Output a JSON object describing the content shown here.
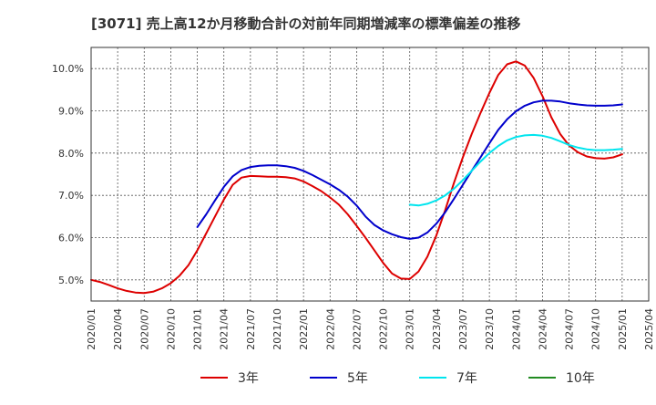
{
  "chart_data": {
    "type": "line",
    "title": "[3071]  売上高12か月移動合計の対前年同期増減率の標準偏差の推移",
    "xlabel": "",
    "ylabel": "",
    "x_ticks": [
      "2020/01",
      "2020/04",
      "2020/07",
      "2020/10",
      "2021/01",
      "2021/04",
      "2021/07",
      "2021/10",
      "2022/01",
      "2022/04",
      "2022/07",
      "2022/10",
      "2023/01",
      "2023/04",
      "2023/07",
      "2023/10",
      "2024/01",
      "2024/04",
      "2024/07",
      "2024/10",
      "2025/01",
      "2025/04"
    ],
    "y_ticks": [
      5.0,
      6.0,
      7.0,
      8.0,
      9.0,
      10.0
    ],
    "y_tick_labels": [
      "5.0%",
      "6.0%",
      "7.0%",
      "8.0%",
      "9.0%",
      "10.0%"
    ],
    "ylim": [
      4.5,
      10.5
    ],
    "xlim": [
      "2020/01",
      "2025/04"
    ],
    "grid": true,
    "legend_position": "bottom",
    "series": [
      {
        "name": "3年",
        "color": "#dd0000",
        "points": [
          [
            "2020/01",
            5.0
          ],
          [
            "2020/02",
            4.95
          ],
          [
            "2020/03",
            4.88
          ],
          [
            "2020/04",
            4.8
          ],
          [
            "2020/05",
            4.74
          ],
          [
            "2020/06",
            4.7
          ],
          [
            "2020/07",
            4.69
          ],
          [
            "2020/08",
            4.72
          ],
          [
            "2020/09",
            4.8
          ],
          [
            "2020/10",
            4.92
          ],
          [
            "2020/11",
            5.1
          ],
          [
            "2020/12",
            5.35
          ],
          [
            "2021/01",
            5.7
          ],
          [
            "2021/02",
            6.1
          ],
          [
            "2021/03",
            6.5
          ],
          [
            "2021/04",
            6.9
          ],
          [
            "2021/05",
            7.25
          ],
          [
            "2021/06",
            7.42
          ],
          [
            "2021/07",
            7.46
          ],
          [
            "2021/08",
            7.45
          ],
          [
            "2021/09",
            7.44
          ],
          [
            "2021/10",
            7.44
          ],
          [
            "2021/11",
            7.43
          ],
          [
            "2021/12",
            7.4
          ],
          [
            "2022/01",
            7.33
          ],
          [
            "2022/02",
            7.22
          ],
          [
            "2022/03",
            7.1
          ],
          [
            "2022/04",
            6.95
          ],
          [
            "2022/05",
            6.78
          ],
          [
            "2022/06",
            6.55
          ],
          [
            "2022/07",
            6.28
          ],
          [
            "2022/08",
            6.0
          ],
          [
            "2022/09",
            5.7
          ],
          [
            "2022/10",
            5.4
          ],
          [
            "2022/11",
            5.15
          ],
          [
            "2022/12",
            5.03
          ],
          [
            "2023/01",
            5.02
          ],
          [
            "2023/02",
            5.2
          ],
          [
            "2023/03",
            5.55
          ],
          [
            "2023/04",
            6.05
          ],
          [
            "2023/05",
            6.65
          ],
          [
            "2023/06",
            7.3
          ],
          [
            "2023/07",
            7.9
          ],
          [
            "2023/08",
            8.45
          ],
          [
            "2023/09",
            8.95
          ],
          [
            "2023/10",
            9.42
          ],
          [
            "2023/11",
            9.85
          ],
          [
            "2023/12",
            10.1
          ],
          [
            "2024/01",
            10.17
          ],
          [
            "2024/02",
            10.07
          ],
          [
            "2024/03",
            9.78
          ],
          [
            "2024/04",
            9.35
          ],
          [
            "2024/05",
            8.85
          ],
          [
            "2024/06",
            8.45
          ],
          [
            "2024/07",
            8.18
          ],
          [
            "2024/08",
            8.02
          ],
          [
            "2024/09",
            7.92
          ],
          [
            "2024/10",
            7.88
          ],
          [
            "2024/11",
            7.87
          ],
          [
            "2024/12",
            7.9
          ],
          [
            "2025/01",
            7.97
          ]
        ]
      },
      {
        "name": "5年",
        "color": "#0000cc",
        "points": [
          [
            "2021/01",
            6.25
          ],
          [
            "2021/02",
            6.55
          ],
          [
            "2021/03",
            6.88
          ],
          [
            "2021/04",
            7.2
          ],
          [
            "2021/05",
            7.45
          ],
          [
            "2021/06",
            7.6
          ],
          [
            "2021/07",
            7.67
          ],
          [
            "2021/08",
            7.7
          ],
          [
            "2021/09",
            7.71
          ],
          [
            "2021/10",
            7.71
          ],
          [
            "2021/11",
            7.69
          ],
          [
            "2021/12",
            7.65
          ],
          [
            "2022/01",
            7.58
          ],
          [
            "2022/02",
            7.48
          ],
          [
            "2022/03",
            7.37
          ],
          [
            "2022/04",
            7.26
          ],
          [
            "2022/05",
            7.13
          ],
          [
            "2022/06",
            6.97
          ],
          [
            "2022/07",
            6.76
          ],
          [
            "2022/08",
            6.5
          ],
          [
            "2022/09",
            6.3
          ],
          [
            "2022/10",
            6.17
          ],
          [
            "2022/11",
            6.08
          ],
          [
            "2022/12",
            6.01
          ],
          [
            "2023/01",
            5.97
          ],
          [
            "2023/02",
            6.0
          ],
          [
            "2023/03",
            6.12
          ],
          [
            "2023/04",
            6.33
          ],
          [
            "2023/05",
            6.6
          ],
          [
            "2023/06",
            6.92
          ],
          [
            "2023/07",
            7.25
          ],
          [
            "2023/08",
            7.58
          ],
          [
            "2023/09",
            7.9
          ],
          [
            "2023/10",
            8.23
          ],
          [
            "2023/11",
            8.55
          ],
          [
            "2023/12",
            8.8
          ],
          [
            "2024/01",
            8.99
          ],
          [
            "2024/02",
            9.12
          ],
          [
            "2024/03",
            9.2
          ],
          [
            "2024/04",
            9.24
          ],
          [
            "2024/05",
            9.24
          ],
          [
            "2024/06",
            9.22
          ],
          [
            "2024/07",
            9.18
          ],
          [
            "2024/08",
            9.15
          ],
          [
            "2024/09",
            9.13
          ],
          [
            "2024/10",
            9.12
          ],
          [
            "2024/11",
            9.12
          ],
          [
            "2024/12",
            9.13
          ],
          [
            "2025/01",
            9.15
          ]
        ]
      },
      {
        "name": "7年",
        "color": "#00e5ee",
        "points": [
          [
            "2023/01",
            6.78
          ],
          [
            "2023/02",
            6.76
          ],
          [
            "2023/03",
            6.8
          ],
          [
            "2023/04",
            6.88
          ],
          [
            "2023/05",
            7.0
          ],
          [
            "2023/06",
            7.16
          ],
          [
            "2023/07",
            7.36
          ],
          [
            "2023/08",
            7.58
          ],
          [
            "2023/09",
            7.8
          ],
          [
            "2023/10",
            8.0
          ],
          [
            "2023/11",
            8.17
          ],
          [
            "2023/12",
            8.3
          ],
          [
            "2024/01",
            8.38
          ],
          [
            "2024/02",
            8.42
          ],
          [
            "2024/03",
            8.43
          ],
          [
            "2024/04",
            8.41
          ],
          [
            "2024/05",
            8.36
          ],
          [
            "2024/06",
            8.28
          ],
          [
            "2024/07",
            8.19
          ],
          [
            "2024/08",
            8.13
          ],
          [
            "2024/09",
            8.09
          ],
          [
            "2024/10",
            8.07
          ],
          [
            "2024/11",
            8.07
          ],
          [
            "2024/12",
            8.08
          ],
          [
            "2025/01",
            8.1
          ]
        ]
      },
      {
        "name": "10年",
        "color": "#228b22",
        "points": []
      }
    ]
  }
}
